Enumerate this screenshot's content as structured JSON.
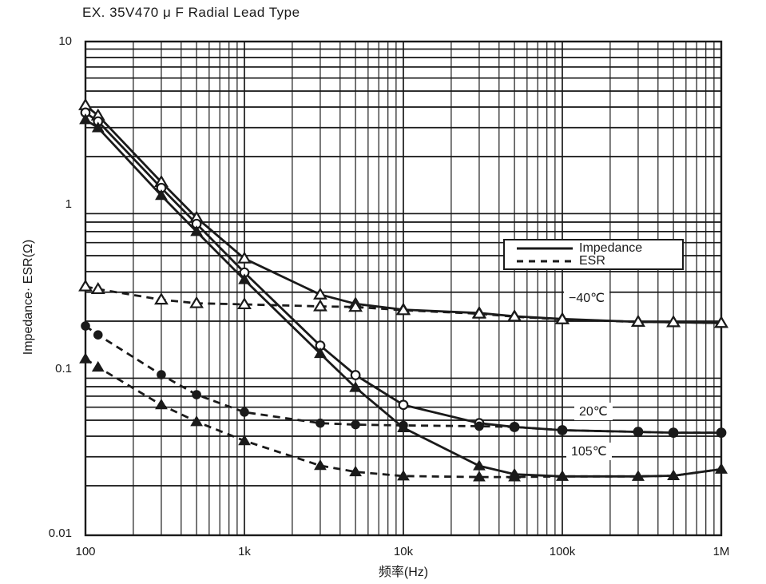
{
  "title": "EX. 35V470 μ F Radial Lead Type",
  "colors": {
    "ink": "#1a1a1a",
    "background": "#ffffff"
  },
  "legend": {
    "items": [
      {
        "label": "Impedance",
        "line": "solid"
      },
      {
        "label": "ESR",
        "line": "dashed"
      }
    ]
  },
  "chart_data": {
    "type": "line",
    "title": "EX. 35V470 μ F Radial Lead Type",
    "x_axis": {
      "label": "频率(Hz)",
      "scale": "log",
      "range": [
        100,
        1000000
      ],
      "grid": true,
      "ticks": [
        {
          "value": 100,
          "label": "100"
        },
        {
          "value": 1000,
          "label": "1k"
        },
        {
          "value": 10000,
          "label": "10k"
        },
        {
          "value": 100000,
          "label": "100k"
        },
        {
          "value": 1000000,
          "label": "1M"
        }
      ]
    },
    "y_axis": {
      "label": "Impedance· ESR(Ω)",
      "scale": "log",
      "range": [
        0.01,
        10
      ],
      "grid": true,
      "ticks": [
        {
          "value": 10,
          "label": "10"
        },
        {
          "value": 1,
          "label": "1"
        },
        {
          "value": 0.1,
          "label": "0.1"
        },
        {
          "value": 0.01,
          "label": "0.01"
        }
      ]
    },
    "frequencies_hz": [
      100,
      120,
      300,
      500,
      1000,
      3000,
      5000,
      10000,
      30000,
      50000,
      100000,
      300000,
      500000,
      1000000
    ],
    "series": [
      {
        "name": "Impedance −40℃",
        "quantity": "Impedance",
        "temperature": "−40℃",
        "line": "solid",
        "marker": "triangle-open",
        "values": [
          4.1,
          3.55,
          1.4,
          0.85,
          0.48,
          0.29,
          0.255,
          0.235,
          0.224,
          0.214,
          0.206,
          0.198,
          0.197,
          0.195
        ]
      },
      {
        "name": "ESR −40℃",
        "quantity": "ESR",
        "temperature": "−40℃",
        "line": "dashed",
        "marker": "triangle-open",
        "values": [
          0.325,
          0.313,
          0.27,
          0.257,
          0.253,
          0.246,
          0.244,
          0.233,
          0.222,
          0.213,
          0.205,
          0.198,
          0.197,
          0.195
        ]
      },
      {
        "name": "Impedance 20℃",
        "quantity": "Impedance",
        "temperature": "20℃",
        "line": "solid",
        "marker": "circle-open",
        "values": [
          3.7,
          3.27,
          1.29,
          0.78,
          0.395,
          0.142,
          0.094,
          0.062,
          0.048,
          0.0455,
          0.0435,
          0.0425,
          0.042,
          0.042
        ]
      },
      {
        "name": "ESR 20℃",
        "quantity": "ESR",
        "temperature": "20℃",
        "line": "dashed",
        "marker": "circle-filled",
        "values": [
          0.187,
          0.165,
          0.0945,
          0.0715,
          0.056,
          0.048,
          0.047,
          0.0465,
          0.046,
          0.0455,
          0.0435,
          0.0425,
          0.042,
          0.042
        ]
      },
      {
        "name": "Impedance 105℃",
        "quantity": "Impedance",
        "temperature": "105℃",
        "line": "solid",
        "marker": "triangle-filled",
        "values": [
          3.35,
          2.99,
          1.16,
          0.7,
          0.357,
          0.127,
          0.079,
          0.045,
          0.0264,
          0.0235,
          0.0228,
          0.0228,
          0.023,
          0.0252
        ]
      },
      {
        "name": "ESR 105℃",
        "quantity": "ESR",
        "temperature": "105℃",
        "line": "dashed",
        "marker": "triangle-filled",
        "values": [
          0.118,
          0.105,
          0.062,
          0.049,
          0.0375,
          0.0265,
          0.0243,
          0.0229,
          0.0226,
          0.0226,
          0.0228,
          0.0228,
          0.023,
          0.0252
        ]
      }
    ],
    "annotations": [
      {
        "text": "−40℃"
      },
      {
        "text": "20℃"
      },
      {
        "text": "105℃"
      }
    ]
  }
}
